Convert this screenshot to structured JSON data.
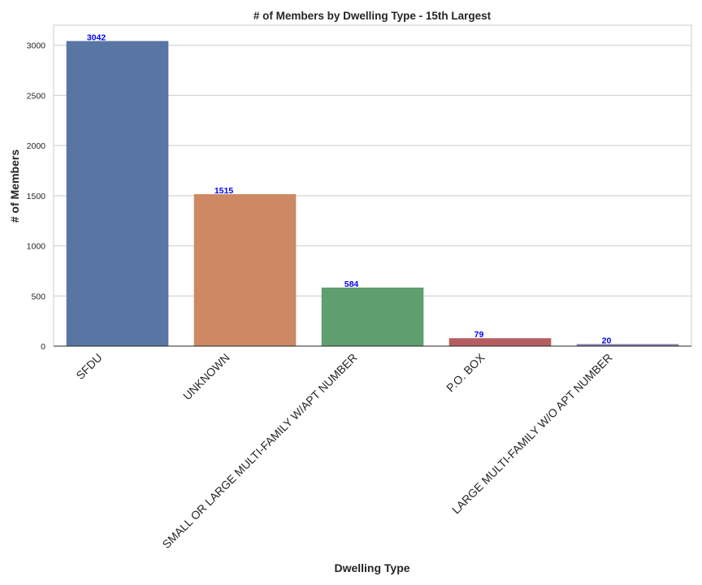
{
  "chart_data": {
    "type": "bar",
    "title": "# of Members by Dwelling Type - 15th Largest",
    "xlabel": "Dwelling Type",
    "ylabel": "# of Members",
    "categories": [
      "SFDU",
      "UNKNOWN",
      "SMALL OR LARGE MULTI-FAMILY W/APT NUMBER",
      "P.O. BOX",
      "LARGE MULTI-FAMILY W/O APT NUMBER"
    ],
    "values": [
      3042,
      1515,
      584,
      79,
      20
    ],
    "data_labels": [
      "3042",
      "1515",
      "584",
      "79",
      "20"
    ],
    "colors": [
      "#5975a4",
      "#cc8963",
      "#5f9e6e",
      "#b55d60",
      "#857aab"
    ],
    "label_color": "#0000ff",
    "yticks": [
      0,
      500,
      1000,
      1500,
      2000,
      2500,
      3000
    ],
    "ylim": [
      0,
      3200
    ],
    "grid": true,
    "legend": "none"
  }
}
